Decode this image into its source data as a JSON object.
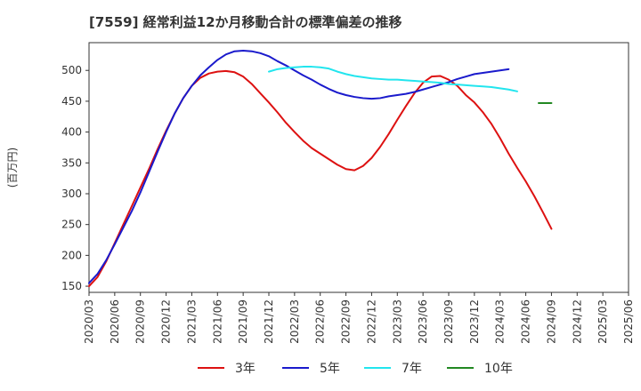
{
  "chart_data": {
    "type": "line",
    "title": "[7559]  経常利益12か月移動合計の標準偏差の推移",
    "ylabel": "(百万円)",
    "ylim": [
      140,
      545
    ],
    "yticks": [
      150,
      200,
      250,
      300,
      350,
      400,
      450,
      500
    ],
    "xticks": [
      "2020/03",
      "2020/06",
      "2020/09",
      "2020/12",
      "2021/03",
      "2021/06",
      "2021/09",
      "2021/12",
      "2022/03",
      "2022/06",
      "2022/09",
      "2022/12",
      "2023/03",
      "2023/06",
      "2023/09",
      "2023/12",
      "2024/03",
      "2024/06",
      "2024/09",
      "2024/12",
      "2025/03",
      "2025/06"
    ],
    "grid": true,
    "legend_position": "bottom",
    "colors": {
      "3年": "#dd1111",
      "5年": "#1a1acc",
      "7年": "#22e5ee",
      "10年": "#228822"
    },
    "series": [
      {
        "name": "3年",
        "color": "#dd1111",
        "x": [
          0,
          1,
          2,
          3,
          4,
          5,
          6,
          7,
          8,
          9,
          10,
          11,
          12,
          13,
          14,
          15,
          16,
          17,
          18,
          19,
          20,
          21,
          22,
          23,
          24,
          25,
          26,
          27,
          28,
          29,
          30,
          31,
          32,
          33,
          34,
          35,
          36,
          37,
          38,
          39,
          40,
          41,
          42,
          43,
          44,
          45,
          46,
          47,
          48,
          49,
          50,
          51,
          52,
          53,
          54,
          55,
          56,
          57,
          58,
          59,
          60
        ],
        "values": [
          150,
          165,
          190,
          220,
          250,
          280,
          310,
          340,
          372,
          402,
          430,
          455,
          475,
          488,
          495,
          498,
          499,
          497,
          490,
          478,
          463,
          448,
          432,
          415,
          400,
          386,
          374,
          365,
          356,
          347,
          340,
          338,
          345,
          358,
          376,
          397,
          420,
          442,
          463,
          480,
          490,
          491,
          485,
          475,
          460,
          448,
          432,
          413,
          390,
          365,
          342,
          320,
          296,
          270,
          243,
          null,
          null,
          null,
          null,
          null,
          null
        ]
      },
      {
        "name": "5年",
        "color": "#1a1acc",
        "x": [
          0,
          1,
          2,
          3,
          4,
          5,
          6,
          7,
          8,
          9,
          10,
          11,
          12,
          13,
          14,
          15,
          16,
          17,
          18,
          19,
          20,
          21,
          22,
          23,
          24,
          25,
          26,
          27,
          28,
          29,
          30,
          31,
          32,
          33,
          34,
          35,
          36,
          37,
          38,
          39,
          40,
          41,
          42,
          43,
          44,
          45,
          46,
          47,
          48,
          49,
          50,
          51,
          52,
          53,
          54,
          55,
          56,
          57,
          58,
          59,
          60
        ],
        "values": [
          155,
          170,
          192,
          218,
          245,
          272,
          302,
          335,
          368,
          400,
          430,
          455,
          475,
          492,
          505,
          517,
          526,
          531,
          532,
          531,
          528,
          523,
          515,
          508,
          500,
          492,
          485,
          477,
          470,
          464,
          460,
          457,
          455,
          454,
          455,
          458,
          460,
          462,
          465,
          469,
          473,
          477,
          481,
          486,
          490,
          494,
          496,
          498,
          500,
          502,
          null,
          null,
          null,
          null,
          null,
          null,
          null,
          null,
          null,
          null,
          null
        ]
      },
      {
        "name": "7年",
        "color": "#22e5ee",
        "x": [
          21,
          22,
          23,
          24,
          25,
          26,
          27,
          28,
          29,
          30,
          31,
          32,
          33,
          34,
          35,
          36,
          37,
          38,
          39,
          40,
          41,
          42,
          43,
          44,
          45,
          46,
          47,
          48,
          49,
          50,
          51,
          52,
          53,
          54
        ],
        "values": [
          498,
          502,
          504,
          505,
          506,
          506,
          505,
          503,
          498,
          494,
          491,
          489,
          487,
          486,
          485,
          485,
          484,
          483,
          482,
          481,
          480,
          478,
          477,
          476,
          475,
          474,
          473,
          471,
          469,
          466,
          null,
          null,
          null,
          null
        ]
      },
      {
        "name": "10年",
        "color": "#228822",
        "x": [
          52.5,
          53.3,
          54.0
        ],
        "values": [
          447,
          447,
          447
        ]
      }
    ]
  }
}
